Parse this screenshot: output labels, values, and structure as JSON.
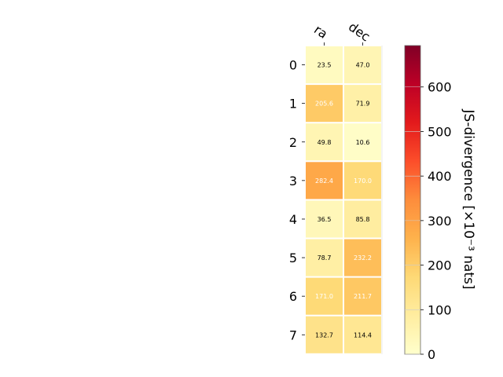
{
  "chart_data": {
    "type": "heatmap",
    "columns": [
      "ra",
      "dec"
    ],
    "rows": [
      "0",
      "1",
      "2",
      "3",
      "4",
      "5",
      "6",
      "7"
    ],
    "values": [
      [
        23.5,
        47.0
      ],
      [
        205.6,
        71.9
      ],
      [
        49.8,
        10.6
      ],
      [
        282.4,
        170.0
      ],
      [
        36.5,
        85.8
      ],
      [
        78.7,
        232.2
      ],
      [
        171.0,
        211.7
      ],
      [
        132.7,
        114.4
      ]
    ],
    "value_labels": [
      [
        "23.5",
        "47.0"
      ],
      [
        "205.6",
        "71.9"
      ],
      [
        "49.8",
        "10.6"
      ],
      [
        "282.4",
        "170.0"
      ],
      [
        "36.5",
        "85.8"
      ],
      [
        "78.7",
        "232.2"
      ],
      [
        "171.0",
        "211.7"
      ],
      [
        "132.7",
        "114.4"
      ]
    ],
    "colorbar": {
      "label": "JS-divergence [×10⁻³ nats]",
      "range": [
        0,
        693
      ],
      "ticks": [
        0,
        100,
        200,
        300,
        400,
        500,
        600
      ],
      "colormap": "YlOrRd"
    },
    "grid": false
  }
}
